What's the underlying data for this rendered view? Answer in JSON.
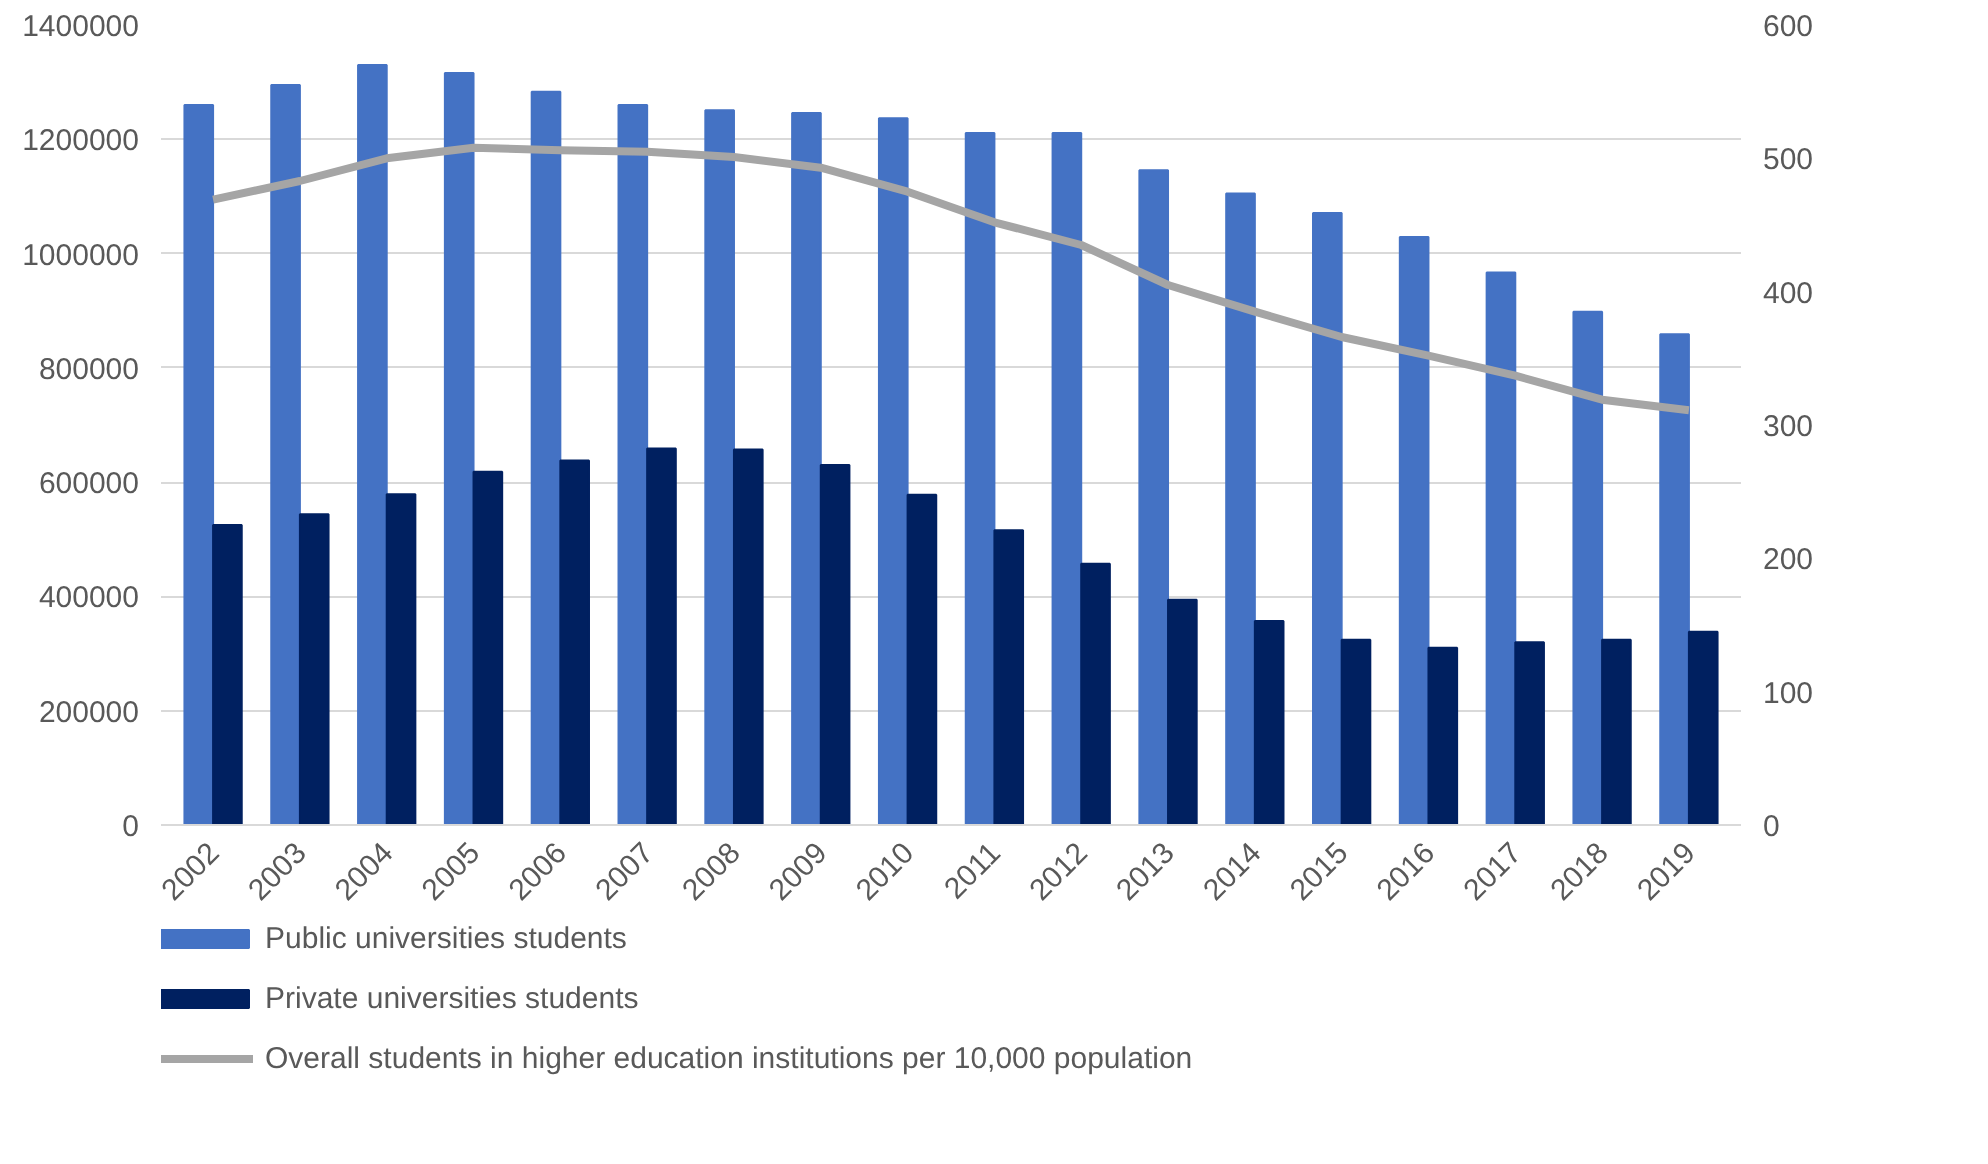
{
  "chart_data": {
    "type": "bar",
    "categories": [
      "2002",
      "2003",
      "2004",
      "2005",
      "2006",
      "2007",
      "2008",
      "2009",
      "2010",
      "2011",
      "2012",
      "2013",
      "2014",
      "2015",
      "2016",
      "2017",
      "2018",
      "2019"
    ],
    "series": [
      {
        "name": "Public universities students",
        "color": "#4472c4",
        "values": [
          1260000,
          1295000,
          1330000,
          1316000,
          1283000,
          1260000,
          1251000,
          1246000,
          1237000,
          1211000,
          1211000,
          1146000,
          1105000,
          1071000,
          1029000,
          967000,
          898000,
          859000
        ]
      },
      {
        "name": "Private universities students",
        "color": "#002060",
        "values": [
          525000,
          544000,
          579000,
          618000,
          638000,
          659000,
          657000,
          630000,
          578000,
          516000,
          457000,
          394000,
          357000,
          324000,
          310000,
          320000,
          324000,
          338000
        ]
      },
      {
        "name": "Overall students in higher education institutions per 10,000 population",
        "type": "line",
        "axis": "y2",
        "color": "#a5a5a5",
        "values": [
          469,
          483,
          500,
          508,
          506,
          505,
          501,
          493,
          475,
          452,
          435,
          405,
          385,
          366,
          352,
          337,
          319,
          311
        ]
      }
    ],
    "ylim": [
      0,
      1400000
    ],
    "yticks": [
      0,
      200000,
      400000,
      600000,
      800000,
      1000000,
      1200000,
      1400000
    ],
    "y2lim": [
      0,
      600
    ],
    "y2ticks": [
      0,
      100,
      200,
      300,
      400,
      500,
      600
    ],
    "grid": "y",
    "legend": "bottom left"
  }
}
